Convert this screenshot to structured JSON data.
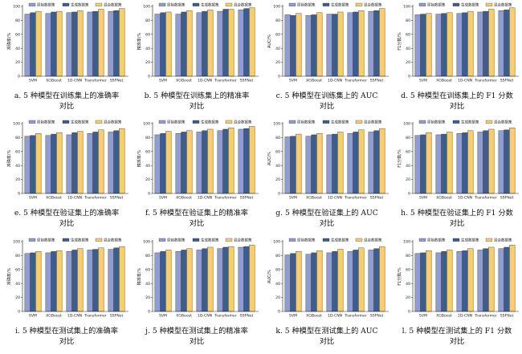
{
  "colors": {
    "original": "#8f9dd0",
    "generated": "#3e5d8c",
    "mixed": "#f6cd74",
    "stroke": "#1e1e1e"
  },
  "chart_data": [
    {
      "type": "bar",
      "caption": "a. 5 种模型在训练集上的准确率对比",
      "ylabel": "准确率/%",
      "categories": [
        "SVM",
        "XGBoost",
        "1D-CNN",
        "Transformer",
        "SSFNet"
      ],
      "legend": [
        "原始数据集",
        "生成数据集",
        "混合数据集"
      ],
      "yticks": [
        0,
        20,
        40,
        60,
        80,
        100
      ],
      "ylim": [
        0,
        100
      ],
      "series": [
        {
          "name": "原始数据集",
          "values": [
            89,
            90,
            91,
            92,
            93
          ]
        },
        {
          "name": "生成数据集",
          "values": [
            91,
            92,
            92,
            93,
            94
          ]
        },
        {
          "name": "混合数据集",
          "values": [
            93,
            93,
            94,
            96,
            97
          ]
        }
      ]
    },
    {
      "type": "bar",
      "caption": "b. 5 种模型在训练集上的精准率对比",
      "ylabel": "精准率/%",
      "categories": [
        "SVM",
        "XGBoost",
        "1D-CNN",
        "Transformer",
        "SSFNet"
      ],
      "legend": [
        "原始数据集",
        "生成数据集",
        "混合数据集"
      ],
      "yticks": [
        0,
        20,
        40,
        60,
        80,
        100
      ],
      "ylim": [
        0,
        100
      ],
      "series": [
        {
          "name": "原始数据集",
          "values": [
            89,
            89,
            91,
            93,
            95
          ]
        },
        {
          "name": "生成数据集",
          "values": [
            91,
            92,
            93,
            96,
            97
          ]
        },
        {
          "name": "混合数据集",
          "values": [
            92,
            94,
            95,
            96,
            98
          ]
        }
      ]
    },
    {
      "type": "bar",
      "caption": "c. 5 种模型在训练集上的 AUC 对比",
      "ylabel": "AUC/%",
      "categories": [
        "SVM",
        "XGBoost",
        "1D-CNN",
        "Transformer",
        "SSFNet"
      ],
      "legend": [
        "原始数据集",
        "生成数据集",
        "混合数据集"
      ],
      "yticks": [
        0,
        20,
        40,
        60,
        80,
        100
      ],
      "ylim": [
        0,
        100
      ],
      "series": [
        {
          "name": "原始数据集",
          "values": [
            88,
            87,
            89,
            91,
            93
          ]
        },
        {
          "name": "生成数据集",
          "values": [
            87,
            88,
            89,
            92,
            94
          ]
        },
        {
          "name": "混合数据集",
          "values": [
            90,
            91,
            92,
            94,
            97
          ]
        }
      ]
    },
    {
      "type": "bar",
      "caption": "d. 5 种模型在训练集上的 F1 分数对比",
      "ylabel": "F1分数/%",
      "categories": [
        "SVM",
        "XGBoost",
        "1D-CNN",
        "Transformer",
        "SSFNet"
      ],
      "legend": [
        "原始数据集",
        "生成数据集",
        "混合数据集"
      ],
      "yticks": [
        0,
        20,
        40,
        60,
        80,
        100
      ],
      "ylim": [
        0,
        100
      ],
      "series": [
        {
          "name": "原始数据集",
          "values": [
            88,
            89,
            90,
            92,
            94
          ]
        },
        {
          "name": "生成数据集",
          "values": [
            89,
            90,
            91,
            93,
            95
          ]
        },
        {
          "name": "混合数据集",
          "values": [
            90,
            91,
            93,
            96,
            98
          ]
        }
      ]
    },
    {
      "type": "bar",
      "caption": "e. 5 种模型在验证集上的准确率对比",
      "ylabel": "准确率/%",
      "categories": [
        "SVM",
        "XGBoost",
        "1D-CNN",
        "Transformer",
        "SSFNet"
      ],
      "legend": [
        "原始数据集",
        "生成数据集",
        "混合数据集"
      ],
      "yticks": [
        0,
        20,
        40,
        60,
        80,
        100
      ],
      "ylim": [
        0,
        100
      ],
      "series": [
        {
          "name": "原始数据集",
          "values": [
            82,
            83,
            84,
            86,
            88
          ]
        },
        {
          "name": "生成数据集",
          "values": [
            83,
            85,
            87,
            88,
            90
          ]
        },
        {
          "name": "混合数据集",
          "values": [
            86,
            87,
            89,
            91,
            93
          ]
        }
      ]
    },
    {
      "type": "bar",
      "caption": "f. 5 种模型在验证集上的精准率对比",
      "ylabel": "精准率/%",
      "categories": [
        "SVM",
        "XGBoost",
        "1D-CNN",
        "Transformer",
        "SSFNet"
      ],
      "legend": [
        "原始数据集",
        "生成数据集",
        "混合数据集"
      ],
      "yticks": [
        0,
        20,
        40,
        60,
        80,
        100
      ],
      "ylim": [
        0,
        100
      ],
      "series": [
        {
          "name": "原始数据集",
          "values": [
            84,
            86,
            88,
            90,
            92
          ]
        },
        {
          "name": "生成数据集",
          "values": [
            86,
            88,
            90,
            92,
            93
          ]
        },
        {
          "name": "混合数据集",
          "values": [
            89,
            90,
            92,
            94,
            96
          ]
        }
      ]
    },
    {
      "type": "bar",
      "caption": "g. 5 种模型在验证集上的 AUC 对比",
      "ylabel": "AUC/%",
      "categories": [
        "SVM",
        "XGBoost",
        "1D-CNN",
        "Transformer",
        "SSFNet"
      ],
      "legend": [
        "原始数据集",
        "生成数据集",
        "混合数据集"
      ],
      "yticks": [
        0,
        20,
        40,
        60,
        80,
        100
      ],
      "ylim": [
        0,
        100
      ],
      "series": [
        {
          "name": "原始数据集",
          "values": [
            81,
            82,
            84,
            86,
            88
          ]
        },
        {
          "name": "生成数据集",
          "values": [
            82,
            84,
            85,
            88,
            90
          ]
        },
        {
          "name": "混合数据集",
          "values": [
            85,
            86,
            88,
            91,
            93
          ]
        }
      ]
    },
    {
      "type": "bar",
      "caption": "h. 5 种模型在验证集上的 F1 分数对比",
      "ylabel": "F1分数/%",
      "categories": [
        "SVM",
        "XGBoost",
        "1D-CNN",
        "Transformer",
        "SSFNet"
      ],
      "legend": [
        "原始数据集",
        "生成数据集",
        "混合数据集"
      ],
      "yticks": [
        0,
        20,
        40,
        60,
        80,
        100
      ],
      "ylim": [
        0,
        100
      ],
      "series": [
        {
          "name": "原始数据集",
          "values": [
            83,
            84,
            86,
            88,
            90
          ]
        },
        {
          "name": "生成数据集",
          "values": [
            84,
            85,
            87,
            90,
            91
          ]
        },
        {
          "name": "混合数据集",
          "values": [
            87,
            88,
            90,
            92,
            94
          ]
        }
      ]
    },
    {
      "type": "bar",
      "caption": "i. 5 种模型在测试集上的准确率对比",
      "ylabel": "准确率/%",
      "categories": [
        "SVM",
        "XGBoost",
        "1D-CNN",
        "Transformer",
        "SSFNet"
      ],
      "legend": [
        "原始数据集",
        "生成数据集",
        "混合数据集"
      ],
      "yticks": [
        0,
        20,
        40,
        60,
        80,
        100
      ],
      "ylim": [
        0,
        100
      ],
      "series": [
        {
          "name": "原始数据集",
          "values": [
            83,
            84,
            86,
            88,
            89
          ]
        },
        {
          "name": "生成数据集",
          "values": [
            84,
            86,
            88,
            89,
            91
          ]
        },
        {
          "name": "混合数据集",
          "values": [
            86,
            87,
            90,
            91,
            93
          ]
        }
      ]
    },
    {
      "type": "bar",
      "caption": "j. 5 种模型在测试集上的精准率对比",
      "ylabel": "精准率/%",
      "categories": [
        "SVM",
        "XGBoost",
        "1D-CNN",
        "Transformer",
        "SSFNet"
      ],
      "legend": [
        "原始数据集",
        "生成数据集",
        "混合数据集"
      ],
      "yticks": [
        0,
        20,
        40,
        60,
        80,
        100
      ],
      "ylim": [
        0,
        100
      ],
      "series": [
        {
          "name": "原始数据集",
          "values": [
            84,
            86,
            88,
            90,
            92
          ]
        },
        {
          "name": "生成数据集",
          "values": [
            86,
            88,
            90,
            92,
            93
          ]
        },
        {
          "name": "混合数据集",
          "values": [
            88,
            90,
            92,
            93,
            95
          ]
        }
      ]
    },
    {
      "type": "bar",
      "caption": "k. 5 种模型在测试集上的 AUC 对比",
      "ylabel": "AUC/%",
      "categories": [
        "SVM",
        "XGBoost",
        "1D-CNN",
        "Transformer",
        "SSFNet"
      ],
      "legend": [
        "原始数据集",
        "生成数据集",
        "混合数据集"
      ],
      "yticks": [
        0,
        20,
        40,
        60,
        80,
        100
      ],
      "ylim": [
        0,
        100
      ],
      "series": [
        {
          "name": "原始数据集",
          "values": [
            81,
            82,
            84,
            86,
            88
          ]
        },
        {
          "name": "生成数据集",
          "values": [
            83,
            84,
            86,
            88,
            90
          ]
        },
        {
          "name": "混合数据集",
          "values": [
            86,
            87,
            89,
            91,
            93
          ]
        }
      ]
    },
    {
      "type": "bar",
      "caption": "l. 5 种模型在测试集上的 F1 分数对比",
      "ylabel": "F1分数/%",
      "categories": [
        "SVM",
        "XGBoost",
        "1D-CNN",
        "Transformer",
        "SSFNet"
      ],
      "legend": [
        "原始数据集",
        "生成数据集",
        "混合数据集"
      ],
      "yticks": [
        0,
        20,
        40,
        60,
        80,
        100
      ],
      "ylim": [
        0,
        100
      ],
      "series": [
        {
          "name": "原始数据集",
          "values": [
            83,
            84,
            86,
            88,
            90
          ]
        },
        {
          "name": "生成数据集",
          "values": [
            84,
            86,
            87,
            90,
            92
          ]
        },
        {
          "name": "混合数据集",
          "values": [
            87,
            88,
            90,
            92,
            95
          ]
        }
      ]
    }
  ]
}
